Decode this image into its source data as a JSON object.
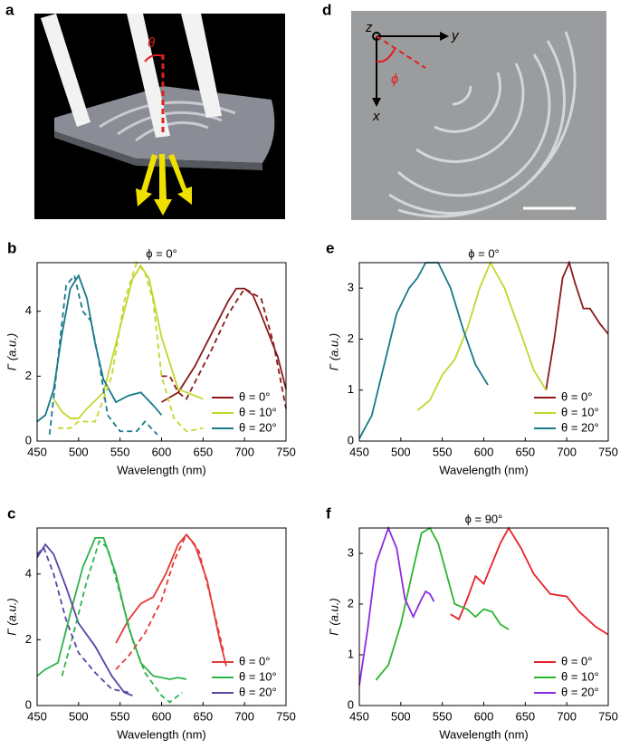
{
  "images": [
    {
      "label": "a",
      "annotations": [
        "θ"
      ]
    },
    {
      "label": "d",
      "annotations": [
        "z",
        "y",
        "x",
        "ϕ"
      ]
    }
  ],
  "chart_data": [
    {
      "type": "line",
      "panel_label": "b",
      "title": "ϕ = 0°",
      "xlabel": "Wavelength (nm)",
      "ylabel": "Γ (a.u.)",
      "xlim": [
        450,
        750
      ],
      "xticks": [
        450,
        500,
        550,
        600,
        650,
        700,
        750
      ],
      "ylim": [
        0,
        5.5
      ],
      "yticks": [
        0,
        2,
        4
      ],
      "legend": "lower right",
      "series": [
        {
          "name": "θ = 0°",
          "color": "#8b1a1a",
          "x": [
            600,
            620,
            640,
            660,
            680,
            690,
            700,
            710,
            720,
            740,
            750
          ],
          "values": [
            1.2,
            1.5,
            2.3,
            3.3,
            4.3,
            4.7,
            4.7,
            4.5,
            3.9,
            2.6,
            1.6
          ]
        },
        {
          "name": "θ = 10°",
          "color": "#c5d52c",
          "x": [
            470,
            480,
            490,
            500,
            510,
            530,
            550,
            565,
            575,
            585,
            600,
            620,
            640,
            650
          ],
          "values": [
            1.3,
            0.9,
            0.7,
            0.7,
            1.0,
            1.5,
            3.5,
            5.0,
            5.4,
            5.0,
            3.2,
            1.6,
            1.4,
            1.3
          ]
        },
        {
          "name": "θ = 20°",
          "color": "#17798a",
          "x": [
            450,
            460,
            470,
            480,
            490,
            500,
            510,
            520,
            530,
            545,
            560,
            575,
            590,
            600
          ],
          "values": [
            0.6,
            0.8,
            1.6,
            3.3,
            4.7,
            5.1,
            4.4,
            3.0,
            1.9,
            1.2,
            1.4,
            1.5,
            1.1,
            0.8
          ]
        },
        {
          "color": "#8b1a1a",
          "linestyle": "dashed",
          "x": [
            600,
            610,
            620,
            630,
            640,
            660,
            680,
            700,
            720,
            735,
            750
          ],
          "values": [
            2.0,
            2.0,
            1.5,
            1.3,
            1.8,
            2.8,
            3.9,
            4.7,
            4.4,
            3.0,
            1.0
          ]
        },
        {
          "color": "#c5d52c",
          "linestyle": "dashed",
          "x": [
            475,
            490,
            500,
            520,
            540,
            555,
            570,
            580,
            590,
            600,
            615,
            630,
            650
          ],
          "values": [
            0.4,
            0.4,
            0.6,
            0.6,
            2.0,
            4.3,
            5.5,
            5.2,
            4.3,
            2.0,
            0.7,
            0.3,
            0.4
          ]
        },
        {
          "color": "#17798a",
          "linestyle": "dashed",
          "x": [
            465,
            475,
            485,
            495,
            505,
            515,
            525,
            535,
            550,
            570,
            580,
            595
          ],
          "values": [
            0.2,
            2.5,
            4.8,
            5.1,
            4.0,
            3.7,
            2.4,
            0.8,
            0.3,
            0.3,
            0.6,
            0.2
          ]
        }
      ]
    },
    {
      "type": "line",
      "panel_label": "e",
      "title": "ϕ = 0°",
      "xlabel": "Wavelength (nm)",
      "ylabel": "Γ (a.u.)",
      "xlim": [
        450,
        750
      ],
      "xticks": [
        450,
        500,
        550,
        600,
        650,
        700,
        750
      ],
      "ylim": [
        0,
        3.5
      ],
      "yticks": [
        0,
        1,
        2,
        3
      ],
      "legend": "lower right",
      "series": [
        {
          "name": "θ = 0°",
          "color": "#8b1a1a",
          "x": [
            675,
            685,
            695,
            703,
            710,
            720,
            728,
            740,
            750
          ],
          "values": [
            1.0,
            2.0,
            3.2,
            3.5,
            3.1,
            2.6,
            2.6,
            2.3,
            2.1
          ]
        },
        {
          "name": "θ = 10°",
          "color": "#c5d52c",
          "x": [
            520,
            535,
            550,
            565,
            580,
            595,
            608,
            625,
            645,
            660,
            675
          ],
          "values": [
            0.6,
            0.8,
            1.3,
            1.6,
            2.2,
            3.0,
            3.5,
            3.0,
            2.1,
            1.4,
            1.0
          ]
        },
        {
          "name": "θ = 20°",
          "color": "#17798a",
          "x": [
            450,
            465,
            480,
            495,
            510,
            520,
            530,
            545,
            560,
            575,
            590,
            605
          ],
          "values": [
            0.05,
            0.5,
            1.5,
            2.5,
            3.0,
            3.2,
            3.5,
            3.5,
            3.0,
            2.2,
            1.5,
            1.1
          ]
        }
      ]
    },
    {
      "type": "line",
      "panel_label": "c",
      "xlabel": "Wavelength (nm)",
      "ylabel": "Γ (a.u.)",
      "xlim": [
        450,
        750
      ],
      "xticks": [
        450,
        500,
        550,
        600,
        650,
        700,
        750
      ],
      "ylim": [
        0,
        5.4
      ],
      "yticks": [
        0,
        2,
        4
      ],
      "legend": "lower right",
      "series": [
        {
          "name": "θ = 0°",
          "color": "#e33a36",
          "x": [
            545,
            560,
            575,
            590,
            605,
            620,
            630,
            640,
            655,
            670,
            678
          ],
          "values": [
            1.9,
            2.6,
            3.1,
            3.3,
            4.0,
            4.9,
            5.2,
            4.9,
            3.8,
            2.0,
            1.2
          ]
        },
        {
          "name": "θ = 10°",
          "color": "#2db24a",
          "x": [
            450,
            460,
            475,
            490,
            505,
            520,
            530,
            545,
            560,
            575,
            590,
            610,
            620,
            630
          ],
          "values": [
            0.9,
            1.1,
            1.3,
            2.8,
            4.2,
            5.1,
            5.1,
            4.0,
            2.4,
            1.3,
            0.9,
            0.8,
            0.85,
            0.8
          ]
        },
        {
          "name": "θ = 20°",
          "color": "#5a45a5",
          "x": [
            450,
            460,
            470,
            485,
            500,
            520,
            540,
            555,
            565
          ],
          "values": [
            4.5,
            4.9,
            4.6,
            3.6,
            2.5,
            1.8,
            0.9,
            0.4,
            0.3
          ]
        },
        {
          "color": "#e33a36",
          "linestyle": "dashed",
          "x": [
            545,
            560,
            580,
            600,
            615,
            630,
            645,
            660,
            675
          ],
          "values": [
            1.1,
            1.5,
            2.2,
            3.2,
            4.4,
            5.2,
            4.7,
            3.2,
            1.6
          ]
        },
        {
          "color": "#2db24a",
          "linestyle": "dashed",
          "x": [
            480,
            495,
            510,
            525,
            535,
            550,
            565,
            580,
            600,
            610,
            625
          ],
          "values": [
            0.9,
            2.3,
            3.8,
            5.0,
            4.8,
            3.4,
            2.0,
            1.0,
            0.3,
            0.1,
            0.4
          ]
        },
        {
          "color": "#5a45a5",
          "linestyle": "dashed",
          "x": [
            450,
            458,
            470,
            485,
            500,
            520,
            540,
            560
          ],
          "values": [
            4.6,
            4.8,
            4.0,
            2.6,
            1.6,
            1.0,
            0.5,
            0.4
          ]
        }
      ]
    },
    {
      "type": "line",
      "panel_label": "f",
      "title": "ϕ = 90°",
      "xlabel": "Wavelength (nm)",
      "ylabel": "Γ (a.u.)",
      "xlim": [
        450,
        750
      ],
      "xticks": [
        450,
        500,
        550,
        600,
        650,
        700,
        750
      ],
      "ylim": [
        0,
        3.5
      ],
      "yticks": [
        0,
        1,
        2,
        3
      ],
      "legend": "lower right",
      "series": [
        {
          "name": "θ = 0°",
          "color": "#e8202a",
          "x": [
            560,
            570,
            580,
            590,
            600,
            610,
            620,
            630,
            645,
            660,
            680,
            700,
            715,
            735,
            750
          ],
          "values": [
            1.8,
            1.7,
            2.1,
            2.55,
            2.4,
            2.8,
            3.2,
            3.5,
            3.1,
            2.6,
            2.2,
            2.15,
            1.85,
            1.55,
            1.4
          ]
        },
        {
          "name": "θ = 10°",
          "color": "#2cb52c",
          "x": [
            470,
            485,
            500,
            515,
            525,
            535,
            545,
            555,
            565,
            580,
            590,
            600,
            610,
            620,
            630
          ],
          "values": [
            0.5,
            0.8,
            1.6,
            2.7,
            3.4,
            3.5,
            3.2,
            2.6,
            2.0,
            1.9,
            1.75,
            1.9,
            1.85,
            1.6,
            1.5
          ]
        },
        {
          "name": "θ = 20°",
          "color": "#8a2be0",
          "x": [
            450,
            460,
            470,
            485,
            495,
            505,
            515,
            525,
            530,
            535,
            540
          ],
          "values": [
            0.4,
            1.5,
            2.8,
            3.5,
            3.1,
            2.1,
            1.75,
            2.1,
            2.25,
            2.2,
            2.05
          ]
        }
      ]
    }
  ]
}
